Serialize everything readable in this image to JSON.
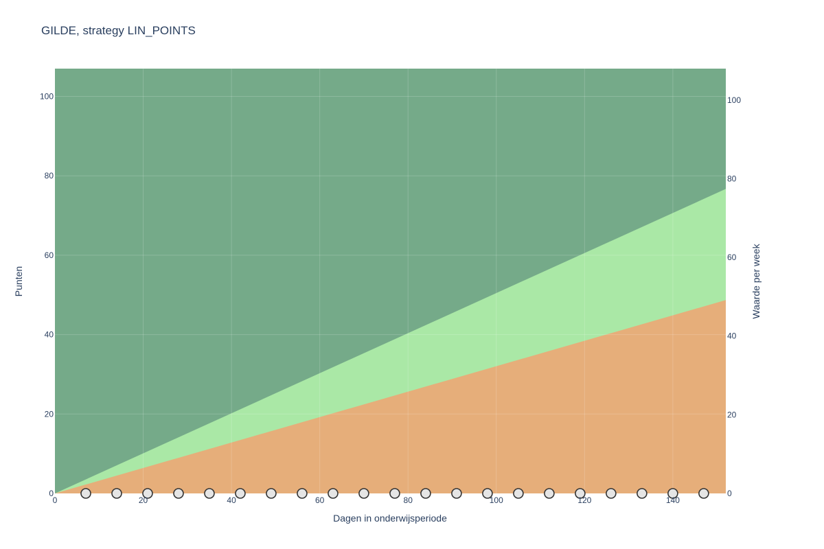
{
  "chart_data": {
    "type": "area",
    "title": "GILDE, strategy LIN_POINTS",
    "xlabel": "Dagen in onderwijsperiode",
    "ylabel": "Punten",
    "y2label": "Waarde per week",
    "xlim": [
      0,
      152
    ],
    "ylim": [
      0,
      107
    ],
    "y2lim": [
      0,
      108
    ],
    "xticks": [
      0,
      20,
      40,
      60,
      80,
      100,
      120,
      140
    ],
    "yticks": [
      0,
      20,
      40,
      60,
      80,
      100
    ],
    "y2ticks": [
      0,
      20,
      40,
      60,
      80,
      100
    ],
    "grid": true,
    "colors": {
      "background_band": "#75aa89",
      "middle_band": "#aae8a6",
      "lower_band": "#e6ae7a",
      "marker_fill": "#e5e5e5",
      "marker_stroke": "#333333"
    },
    "series": [
      {
        "fill": "background_band",
        "x": [
          0,
          152
        ],
        "upper": [
          107,
          107
        ],
        "lower": [
          0,
          0
        ]
      },
      {
        "fill": "middle_band",
        "x": [
          0,
          152
        ],
        "upper": [
          0,
          76.7
        ],
        "lower": [
          0,
          0
        ]
      },
      {
        "fill": "lower_band",
        "x": [
          0,
          152
        ],
        "upper": [
          0,
          48.7
        ],
        "lower": [
          0,
          0
        ]
      }
    ],
    "markers": {
      "x": [
        7,
        14,
        21,
        28,
        35,
        42,
        49,
        56,
        63,
        70,
        77,
        84,
        91,
        98,
        105,
        112,
        119,
        126,
        133,
        140,
        147
      ],
      "y": 0
    }
  }
}
